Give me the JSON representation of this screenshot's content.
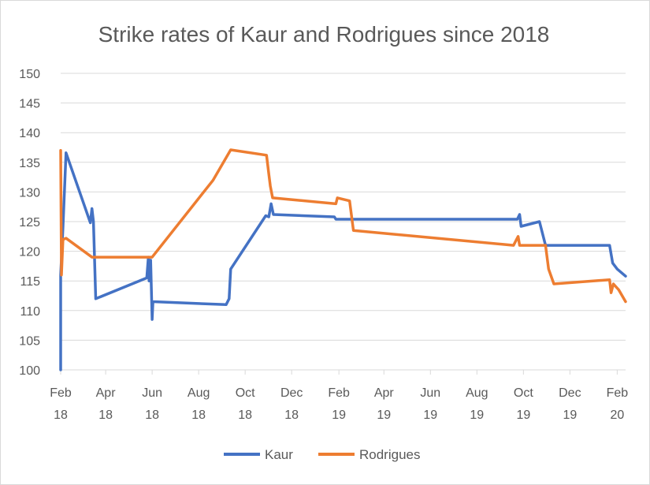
{
  "chart_data": {
    "type": "line",
    "title": "Strike rates of Kaur and Rodrigues since 2018",
    "xlabel": "",
    "ylabel": "",
    "ylim": [
      100,
      150
    ],
    "yticks": [
      "100",
      "105",
      "110",
      "115",
      "120",
      "125",
      "130",
      "135",
      "140",
      "145",
      "150"
    ],
    "xlim": [
      "2018-02-01",
      "2020-02-12"
    ],
    "xticks": [
      {
        "date": "2018-02-01",
        "line1": "Feb",
        "line2": "18"
      },
      {
        "date": "2018-04-01",
        "line1": "Apr",
        "line2": "18"
      },
      {
        "date": "2018-06-01",
        "line1": "Jun",
        "line2": "18"
      },
      {
        "date": "2018-08-01",
        "line1": "Aug",
        "line2": "18"
      },
      {
        "date": "2018-10-01",
        "line1": "Oct",
        "line2": "18"
      },
      {
        "date": "2018-12-01",
        "line1": "Dec",
        "line2": "18"
      },
      {
        "date": "2019-02-01",
        "line1": "Feb",
        "line2": "19"
      },
      {
        "date": "2019-04-01",
        "line1": "Apr",
        "line2": "19"
      },
      {
        "date": "2019-06-01",
        "line1": "Jun",
        "line2": "19"
      },
      {
        "date": "2019-08-01",
        "line1": "Aug",
        "line2": "19"
      },
      {
        "date": "2019-10-01",
        "line1": "Oct",
        "line2": "19"
      },
      {
        "date": "2019-12-01",
        "line1": "Dec",
        "line2": "19"
      },
      {
        "date": "2020-02-01",
        "line1": "Feb",
        "line2": "20"
      }
    ],
    "grid": true,
    "legend_position": "bottom",
    "series": [
      {
        "name": "Kaur",
        "color": "#4472c4",
        "points": [
          [
            "2018-02-01",
            100
          ],
          [
            "2018-02-01",
            116
          ],
          [
            "2018-02-04",
            124
          ],
          [
            "2018-02-08",
            136.6
          ],
          [
            "2018-03-12",
            124.8
          ],
          [
            "2018-03-14",
            127.2
          ],
          [
            "2018-03-16",
            125
          ],
          [
            "2018-03-19",
            112
          ],
          [
            "2018-05-25",
            115.5
          ],
          [
            "2018-05-27",
            119
          ],
          [
            "2018-05-28",
            115
          ],
          [
            "2018-05-30",
            118.5
          ],
          [
            "2018-06-01",
            108.5
          ],
          [
            "2018-06-02",
            111.5
          ],
          [
            "2018-09-06",
            111
          ],
          [
            "2018-09-10",
            112
          ],
          [
            "2018-09-12",
            117
          ],
          [
            "2018-10-28",
            126
          ],
          [
            "2018-11-01",
            125.8
          ],
          [
            "2018-11-04",
            128
          ],
          [
            "2018-11-07",
            126.2
          ],
          [
            "2019-01-26",
            125.8
          ],
          [
            "2019-01-28",
            125.4
          ],
          [
            "2019-09-23",
            125.4
          ],
          [
            "2019-09-26",
            126.2
          ],
          [
            "2019-09-28",
            124.2
          ],
          [
            "2019-10-22",
            125
          ],
          [
            "2019-10-30",
            121
          ],
          [
            "2020-01-22",
            121
          ],
          [
            "2020-01-26",
            118
          ],
          [
            "2020-02-01",
            117
          ],
          [
            "2020-02-12",
            115.8
          ]
        ]
      },
      {
        "name": "Rodrigues",
        "color": "#ed7d31",
        "points": [
          [
            "2018-02-01",
            137
          ],
          [
            "2018-02-02",
            116
          ],
          [
            "2018-02-04",
            122
          ],
          [
            "2018-02-08",
            122.2
          ],
          [
            "2018-03-14",
            119
          ],
          [
            "2018-04-01",
            119
          ],
          [
            "2018-06-01",
            119
          ],
          [
            "2018-08-20",
            132
          ],
          [
            "2018-09-12",
            137.1
          ],
          [
            "2018-10-29",
            136.2
          ],
          [
            "2018-11-01",
            133
          ],
          [
            "2018-11-03",
            131
          ],
          [
            "2018-11-06",
            129
          ],
          [
            "2019-01-28",
            128
          ],
          [
            "2019-01-30",
            129
          ],
          [
            "2019-02-15",
            128.5
          ],
          [
            "2019-02-20",
            123.5
          ],
          [
            "2019-09-18",
            121
          ],
          [
            "2019-09-24",
            122.5
          ],
          [
            "2019-09-26",
            121
          ],
          [
            "2019-10-30",
            121
          ],
          [
            "2019-11-03",
            117
          ],
          [
            "2019-11-10",
            114.5
          ],
          [
            "2020-01-22",
            115.2
          ],
          [
            "2020-01-24",
            113
          ],
          [
            "2020-01-27",
            114.5
          ],
          [
            "2020-02-03",
            113.5
          ],
          [
            "2020-02-12",
            111.5
          ]
        ]
      }
    ]
  }
}
